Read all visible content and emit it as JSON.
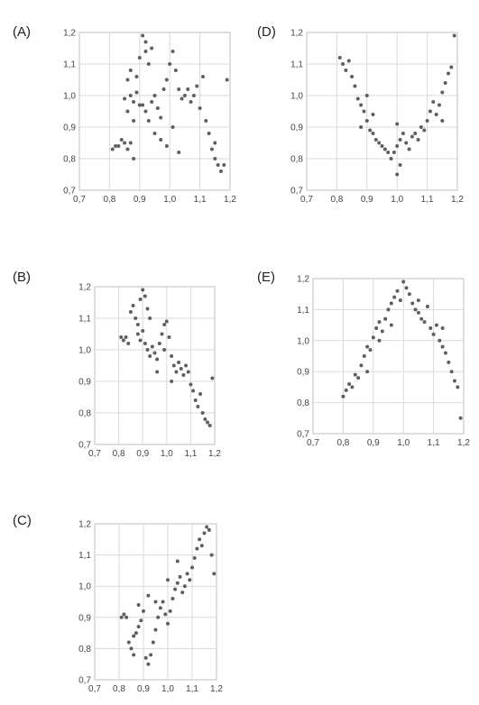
{
  "colors": {
    "point": "#5f5f5f",
    "grid": "#d9d9d9",
    "frame": "#bfbfbf"
  },
  "chart_data": [
    {
      "type": "scatter",
      "label": "(A)",
      "xlim": [
        0.7,
        1.2
      ],
      "ylim": [
        0.7,
        1.2
      ],
      "grid": true,
      "xticks": [
        "0,7",
        "0,8",
        "0,9",
        "1,0",
        "1,1",
        "1,2"
      ],
      "yticks": [
        "0,7",
        "0,8",
        "0,9",
        "1,0",
        "1,1",
        "1,2"
      ],
      "pattern": "two clusters: one near x 0.85-0.95 spanning y 0.82-1.19, one near x 1.0-1.17 descending from 1.1 to 0.75",
      "points": [
        [
          0.81,
          0.83
        ],
        [
          0.82,
          0.84
        ],
        [
          0.84,
          0.86
        ],
        [
          0.85,
          0.85
        ],
        [
          0.83,
          0.84
        ],
        [
          0.86,
          0.83
        ],
        [
          0.88,
          0.8
        ],
        [
          0.87,
          0.85
        ],
        [
          0.86,
          0.95
        ],
        [
          0.85,
          0.99
        ],
        [
          0.86,
          1.05
        ],
        [
          0.87,
          1.08
        ],
        [
          0.87,
          1.0
        ],
        [
          0.88,
          0.98
        ],
        [
          0.89,
          1.01
        ],
        [
          0.9,
          0.97
        ],
        [
          0.9,
          1.12
        ],
        [
          0.91,
          1.19
        ],
        [
          0.92,
          1.17
        ],
        [
          0.92,
          1.14
        ],
        [
          0.93,
          1.1
        ],
        [
          0.91,
          0.97
        ],
        [
          0.92,
          0.95
        ],
        [
          0.93,
          0.92
        ],
        [
          0.94,
          0.98
        ],
        [
          0.95,
          1.0
        ],
        [
          0.96,
          0.96
        ],
        [
          0.97,
          0.93
        ],
        [
          0.98,
          1.02
        ],
        [
          0.99,
          1.05
        ],
        [
          1.0,
          1.1
        ],
        [
          1.01,
          1.14
        ],
        [
          1.02,
          1.08
        ],
        [
          1.03,
          1.02
        ],
        [
          1.04,
          0.99
        ],
        [
          1.05,
          1.0
        ],
        [
          1.06,
          1.02
        ],
        [
          1.07,
          0.98
        ],
        [
          1.08,
          1.0
        ],
        [
          1.09,
          1.03
        ],
        [
          1.1,
          0.96
        ],
        [
          1.11,
          1.06
        ],
        [
          1.12,
          0.92
        ],
        [
          1.13,
          0.88
        ],
        [
          1.14,
          0.83
        ],
        [
          1.15,
          0.8
        ],
        [
          1.16,
          0.78
        ],
        [
          1.17,
          0.76
        ],
        [
          1.18,
          0.78
        ],
        [
          1.15,
          0.85
        ],
        [
          1.19,
          1.05
        ],
        [
          0.95,
          0.88
        ],
        [
          0.97,
          0.86
        ],
        [
          0.99,
          0.84
        ],
        [
          1.01,
          0.9
        ],
        [
          1.03,
          0.82
        ],
        [
          0.89,
          1.06
        ],
        [
          0.88,
          0.92
        ],
        [
          0.94,
          1.15
        ]
      ]
    },
    {
      "type": "scatter",
      "label": "(B)",
      "xlim": [
        0.7,
        1.2
      ],
      "ylim": [
        0.7,
        1.2
      ],
      "grid": true,
      "xticks": [
        "0,7",
        "0,8",
        "0,9",
        "1,0",
        "1,1",
        "1,2"
      ],
      "yticks": [
        "0,7",
        "0,8",
        "0,9",
        "1,0",
        "1,1",
        "1,2"
      ],
      "pattern": "negative trend from (0.82, 1.04) to (1.18, 0.76)",
      "points": [
        [
          0.81,
          1.04
        ],
        [
          0.82,
          1.03
        ],
        [
          0.83,
          1.04
        ],
        [
          0.84,
          1.02
        ],
        [
          0.85,
          1.12
        ],
        [
          0.86,
          1.14
        ],
        [
          0.87,
          1.1
        ],
        [
          0.88,
          1.08
        ],
        [
          0.89,
          1.16
        ],
        [
          0.9,
          1.19
        ],
        [
          0.91,
          1.17
        ],
        [
          0.92,
          1.13
        ],
        [
          0.93,
          1.1
        ],
        [
          0.88,
          1.05
        ],
        [
          0.89,
          1.03
        ],
        [
          0.9,
          1.06
        ],
        [
          0.91,
          1.02
        ],
        [
          0.92,
          1.0
        ],
        [
          0.93,
          0.98
        ],
        [
          0.94,
          1.01
        ],
        [
          0.95,
          0.99
        ],
        [
          0.96,
          0.97
        ],
        [
          0.97,
          1.02
        ],
        [
          0.98,
          1.05
        ],
        [
          0.99,
          1.08
        ],
        [
          1.0,
          1.09
        ],
        [
          1.01,
          1.04
        ],
        [
          1.02,
          0.98
        ],
        [
          1.03,
          0.95
        ],
        [
          1.04,
          0.93
        ],
        [
          1.05,
          0.96
        ],
        [
          1.06,
          0.94
        ],
        [
          1.07,
          0.92
        ],
        [
          1.08,
          0.95
        ],
        [
          1.09,
          0.93
        ],
        [
          1.1,
          0.89
        ],
        [
          1.11,
          0.87
        ],
        [
          1.12,
          0.84
        ],
        [
          1.13,
          0.82
        ],
        [
          1.14,
          0.86
        ],
        [
          1.15,
          0.8
        ],
        [
          1.16,
          0.78
        ],
        [
          1.17,
          0.77
        ],
        [
          1.18,
          0.76
        ],
        [
          1.19,
          0.91
        ],
        [
          1.02,
          0.9
        ],
        [
          0.96,
          0.93
        ],
        [
          0.99,
          1.0
        ]
      ]
    },
    {
      "type": "scatter",
      "label": "(C)",
      "xlim": [
        0.7,
        1.2
      ],
      "ylim": [
        0.7,
        1.2
      ],
      "grid": true,
      "xticks": [
        "0,7",
        "0,8",
        "0,9",
        "1,0",
        "1,1",
        "1,2"
      ],
      "yticks": [
        "0,7",
        "0,8",
        "0,9",
        "1,0",
        "1,1",
        "1,2"
      ],
      "pattern": "positive trend from (0.82, 0.90) to (1.18, 1.19)",
      "points": [
        [
          0.81,
          0.9
        ],
        [
          0.82,
          0.91
        ],
        [
          0.83,
          0.9
        ],
        [
          0.84,
          0.82
        ],
        [
          0.85,
          0.8
        ],
        [
          0.86,
          0.78
        ],
        [
          0.87,
          0.85
        ],
        [
          0.88,
          0.87
        ],
        [
          0.89,
          0.89
        ],
        [
          0.9,
          0.92
        ],
        [
          0.91,
          0.77
        ],
        [
          0.92,
          0.75
        ],
        [
          0.93,
          0.78
        ],
        [
          0.94,
          0.82
        ],
        [
          0.95,
          0.86
        ],
        [
          0.96,
          0.9
        ],
        [
          0.97,
          0.93
        ],
        [
          0.98,
          0.95
        ],
        [
          0.99,
          0.91
        ],
        [
          1.0,
          0.88
        ],
        [
          1.01,
          0.92
        ],
        [
          1.02,
          0.96
        ],
        [
          1.03,
          0.99
        ],
        [
          1.04,
          1.01
        ],
        [
          1.05,
          1.03
        ],
        [
          1.06,
          0.98
        ],
        [
          1.07,
          1.0
        ],
        [
          1.08,
          1.04
        ],
        [
          1.09,
          1.02
        ],
        [
          1.1,
          1.06
        ],
        [
          1.11,
          1.09
        ],
        [
          1.12,
          1.12
        ],
        [
          1.13,
          1.15
        ],
        [
          1.14,
          1.13
        ],
        [
          1.15,
          1.17
        ],
        [
          1.16,
          1.19
        ],
        [
          1.17,
          1.18
        ],
        [
          1.18,
          1.1
        ],
        [
          1.19,
          1.04
        ],
        [
          0.92,
          0.97
        ],
        [
          0.95,
          0.95
        ],
        [
          1.0,
          1.02
        ],
        [
          1.04,
          1.08
        ],
        [
          0.88,
          0.94
        ],
        [
          0.86,
          0.84
        ]
      ]
    },
    {
      "type": "scatter",
      "label": "(D)",
      "xlim": [
        0.7,
        1.2
      ],
      "ylim": [
        0.7,
        1.2
      ],
      "grid": true,
      "xticks": [
        "0,7",
        "0,8",
        "0,9",
        "1,0",
        "1,1",
        "1,2"
      ],
      "yticks": [
        "0,7",
        "0,8",
        "0,9",
        "1,0",
        "1,1",
        "1,2"
      ],
      "pattern": "U-shaped: high at x 0.81 and 1.18, minimum near (1.0, 0.80)",
      "points": [
        [
          0.81,
          1.12
        ],
        [
          0.82,
          1.1
        ],
        [
          0.83,
          1.08
        ],
        [
          0.84,
          1.11
        ],
        [
          0.85,
          1.06
        ],
        [
          0.86,
          1.03
        ],
        [
          0.87,
          0.99
        ],
        [
          0.88,
          0.97
        ],
        [
          0.89,
          0.95
        ],
        [
          0.9,
          0.92
        ],
        [
          0.91,
          0.89
        ],
        [
          0.92,
          0.88
        ],
        [
          0.93,
          0.86
        ],
        [
          0.94,
          0.85
        ],
        [
          0.95,
          0.84
        ],
        [
          0.96,
          0.83
        ],
        [
          0.97,
          0.82
        ],
        [
          0.98,
          0.8
        ],
        [
          0.99,
          0.82
        ],
        [
          1.0,
          0.84
        ],
        [
          1.01,
          0.86
        ],
        [
          1.02,
          0.88
        ],
        [
          1.03,
          0.85
        ],
        [
          1.04,
          0.83
        ],
        [
          1.05,
          0.87
        ],
        [
          1.06,
          0.88
        ],
        [
          1.07,
          0.86
        ],
        [
          1.08,
          0.9
        ],
        [
          1.09,
          0.89
        ],
        [
          1.1,
          0.92
        ],
        [
          1.11,
          0.95
        ],
        [
          1.12,
          0.98
        ],
        [
          1.13,
          0.94
        ],
        [
          1.14,
          0.97
        ],
        [
          1.15,
          1.01
        ],
        [
          1.16,
          1.04
        ],
        [
          1.17,
          1.07
        ],
        [
          1.18,
          1.09
        ],
        [
          1.19,
          1.19
        ],
        [
          0.88,
          0.9
        ],
        [
          0.92,
          0.94
        ],
        [
          1.0,
          0.91
        ],
        [
          1.01,
          0.78
        ],
        [
          1.0,
          0.75
        ],
        [
          0.9,
          1.0
        ],
        [
          1.15,
          0.92
        ]
      ]
    },
    {
      "type": "scatter",
      "label": "(E)",
      "xlim": [
        0.7,
        1.2
      ],
      "ylim": [
        0.7,
        1.2
      ],
      "grid": true,
      "xticks": [
        "0,7",
        "0,8",
        "0,9",
        "1,0",
        "1,1",
        "1,2"
      ],
      "yticks": [
        "0,7",
        "0,8",
        "0,9",
        "1,0",
        "1,1",
        "1,2"
      ],
      "pattern": "inverted U: low at x 0.81 and 1.18, maximum near (1.0, 1.19)",
      "points": [
        [
          0.8,
          0.82
        ],
        [
          0.81,
          0.84
        ],
        [
          0.82,
          0.86
        ],
        [
          0.83,
          0.85
        ],
        [
          0.84,
          0.89
        ],
        [
          0.85,
          0.88
        ],
        [
          0.86,
          0.92
        ],
        [
          0.87,
          0.95
        ],
        [
          0.88,
          0.98
        ],
        [
          0.89,
          0.97
        ],
        [
          0.9,
          1.01
        ],
        [
          0.91,
          1.04
        ],
        [
          0.92,
          1.06
        ],
        [
          0.93,
          1.03
        ],
        [
          0.94,
          1.07
        ],
        [
          0.95,
          1.1
        ],
        [
          0.96,
          1.12
        ],
        [
          0.97,
          1.14
        ],
        [
          0.98,
          1.16
        ],
        [
          0.99,
          1.13
        ],
        [
          1.0,
          1.19
        ],
        [
          1.01,
          1.17
        ],
        [
          1.02,
          1.15
        ],
        [
          1.03,
          1.12
        ],
        [
          1.04,
          1.1
        ],
        [
          1.05,
          1.09
        ],
        [
          1.06,
          1.07
        ],
        [
          1.07,
          1.06
        ],
        [
          1.08,
          1.11
        ],
        [
          1.09,
          1.04
        ],
        [
          1.1,
          1.02
        ],
        [
          1.11,
          1.05
        ],
        [
          1.12,
          1.0
        ],
        [
          1.13,
          0.98
        ],
        [
          1.14,
          0.96
        ],
        [
          1.15,
          0.93
        ],
        [
          1.16,
          0.9
        ],
        [
          1.17,
          0.87
        ],
        [
          1.18,
          0.85
        ],
        [
          1.19,
          0.75
        ],
        [
          0.88,
          0.9
        ],
        [
          0.92,
          1.0
        ],
        [
          0.96,
          1.05
        ],
        [
          1.05,
          1.13
        ],
        [
          1.13,
          1.04
        ]
      ]
    }
  ]
}
